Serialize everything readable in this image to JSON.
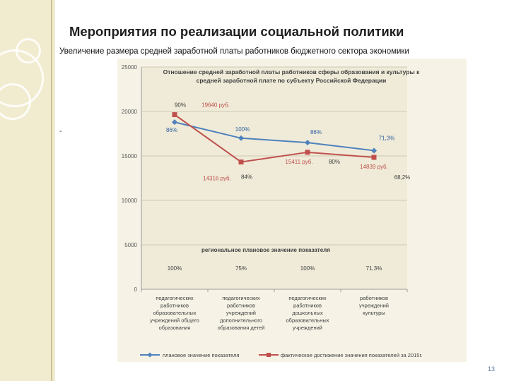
{
  "slide": {
    "title": "Мероприятия по реализации социальной политики",
    "subtitle": "Увеличение размера средней заработной платы работников бюджетного сектора экономики",
    "bullet": "-",
    "page_number": "13"
  },
  "chart_data": {
    "type": "line",
    "title": "Отношение средней заработной платы работников сферы образования и культуры к средней заработной плате по субъекту Российской Федерации",
    "title_lines": [
      "Отношение средней заработной платы работников сферы образования и культуры к",
      "средней заработной плате по субъекту Российской Федерации"
    ],
    "categories": [
      "педагогических работников образовательных учреждений общего образования",
      "педагогических работников учреждений дополнительного образования детей",
      "педагогических работников дошкольных образовательных учреждений",
      "работников учреждений культуры"
    ],
    "category_lines": [
      [
        "педагогических",
        "работников",
        "образовательных",
        "учреждений общего",
        "образования"
      ],
      [
        "педагогических",
        "работников",
        "учреждений",
        "дополнительного",
        "образования детей"
      ],
      [
        "педагогических",
        "работников",
        "дошкольных",
        "образовательных",
        "учреждений"
      ],
      [
        "работников",
        "учреждений",
        "культуры"
      ]
    ],
    "series": [
      {
        "name": "плановое значение показателя",
        "values": [
          18800,
          17000,
          16500,
          15600
        ],
        "color": "#4f81bd",
        "marker": "diamond"
      },
      {
        "name": "фактическое достижение значения показателей за 2015г.",
        "values": [
          19640,
          14316,
          15411,
          14839
        ],
        "color": "#c0504d",
        "marker": "square"
      }
    ],
    "ylim": [
      0,
      25000
    ],
    "yticks": [
      0,
      5000,
      10000,
      15000,
      20000,
      25000
    ],
    "grid": true,
    "legend": "bottom",
    "plan_labels": [
      "86%",
      "100%",
      "86%",
      "71,3%"
    ],
    "fact_percent_labels": [
      "90%",
      "84%",
      "80%",
      "68,2%"
    ],
    "fact_value_labels": [
      "19640 руб.",
      "14316 руб.",
      "15411 руб.",
      "14839 руб."
    ],
    "regional_caption": "региональное плановое значение показателя",
    "regional_values": [
      "100%",
      "75%",
      "100%",
      "71,3%"
    ],
    "colors": {
      "plot_bg": "#efebd8",
      "outer_bg": "#f6f3e6",
      "title": "#404040",
      "axis_text": "#595959",
      "annotation_blue": "#2e5fa0",
      "annotation_red": "#c0504d"
    }
  }
}
